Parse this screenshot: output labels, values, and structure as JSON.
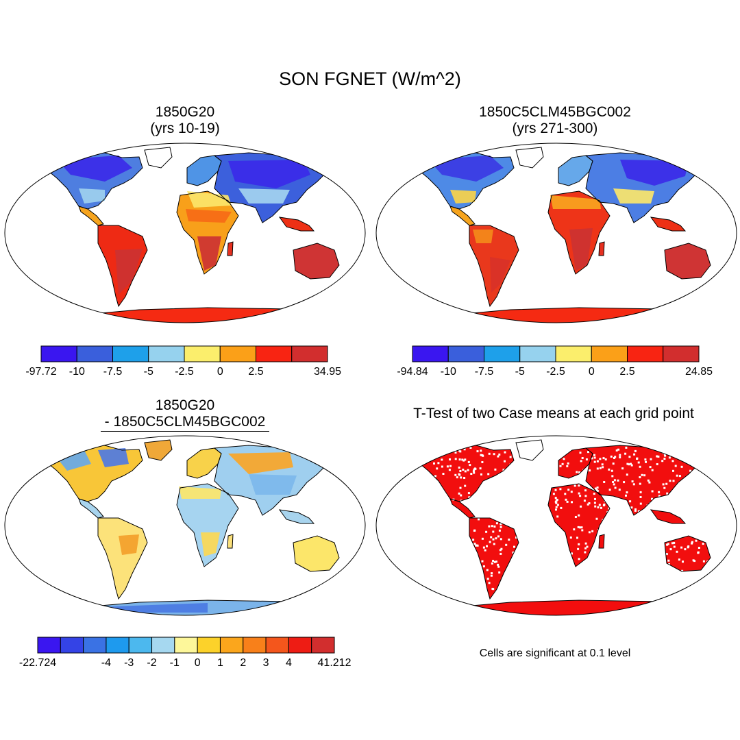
{
  "main_title": "SON FGNET (W/m^2)",
  "panels": {
    "top_left": {
      "title_line1": "1850G20",
      "title_line2": "(yrs 10-19)"
    },
    "top_right": {
      "title_line1": "1850C5CLM45BGC002",
      "title_line2": "(yrs 271-300)"
    },
    "bottom_left": {
      "title_line1": "1850G20",
      "title_line2": "- 1850C5CLM45BGC002"
    },
    "bottom_right": {
      "title": "T-Test of two Case means at each grid point",
      "note": "Cells are significant at 0.1 level"
    }
  },
  "colorbars": {
    "top_left": {
      "colors": [
        "#3a16f0",
        "#3a5fdc",
        "#1ea0ea",
        "#96d2ee",
        "#fbee6c",
        "#fba018",
        "#f82412",
        "#d22e2e"
      ],
      "labels": [
        "-97.72",
        "-10",
        "-7.5",
        "-5",
        "-2.5",
        "0",
        "2.5",
        "34.95"
      ]
    },
    "top_right": {
      "colors": [
        "#3a16f0",
        "#3a5fdc",
        "#1ea0ea",
        "#96d2ee",
        "#fbee6c",
        "#fba018",
        "#f82412",
        "#d22e2e"
      ],
      "labels": [
        "-94.84",
        "-10",
        "-7.5",
        "-5",
        "-2.5",
        "0",
        "2.5",
        "24.85"
      ]
    },
    "bottom_left": {
      "colors": [
        "#3a16f0",
        "#3443e6",
        "#3a72e4",
        "#1e9aee",
        "#4cb8ee",
        "#a6d8f0",
        "#fdf79a",
        "#fcd22a",
        "#fba61c",
        "#f8801a",
        "#f4561c",
        "#ee1c14",
        "#d22e2e"
      ],
      "labels": [
        "-22.724",
        "-4",
        "-3",
        "-2",
        "-1",
        "0",
        "1",
        "2",
        "3",
        "4",
        "41.212"
      ]
    }
  }
}
